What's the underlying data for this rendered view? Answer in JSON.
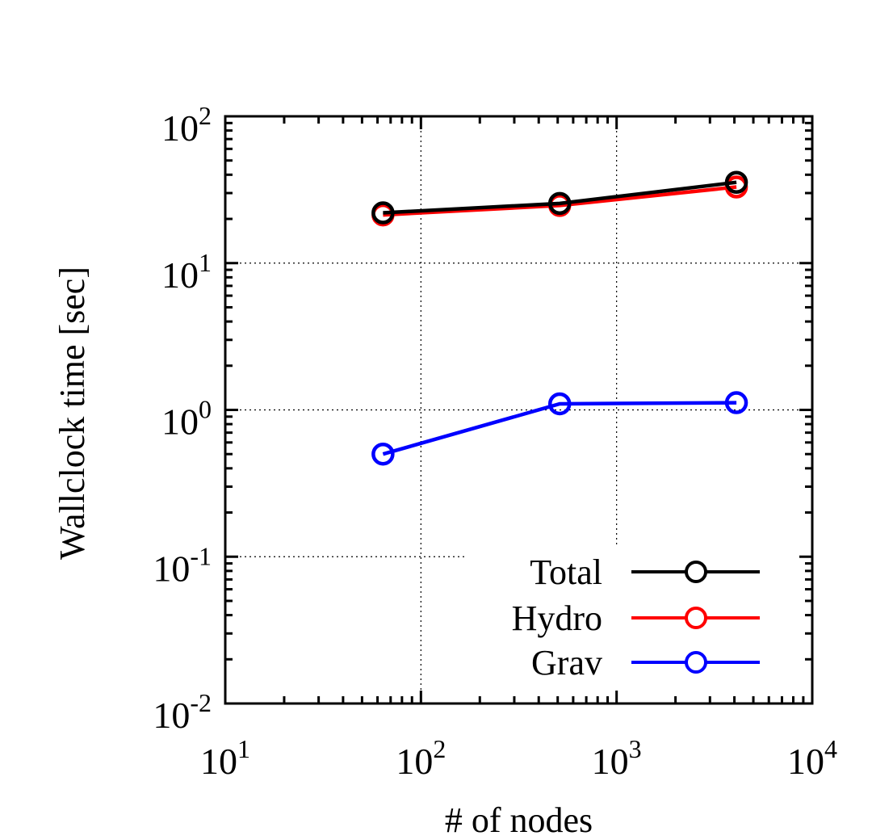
{
  "chart_data": {
    "type": "line",
    "xlabel": "# of nodes",
    "ylabel": "Wallclock time [sec]",
    "xscale": "log",
    "yscale": "log",
    "xlim": [
      10,
      10000
    ],
    "ylim": [
      0.01,
      100
    ],
    "x_ticks": [
      {
        "value": 10,
        "base": "10",
        "exp": "1"
      },
      {
        "value": 100,
        "base": "10",
        "exp": "2"
      },
      {
        "value": 1000,
        "base": "10",
        "exp": "3"
      },
      {
        "value": 10000,
        "base": "10",
        "exp": "4"
      }
    ],
    "y_ticks": [
      {
        "value": 0.01,
        "base": "10",
        "exp": "-2"
      },
      {
        "value": 0.1,
        "base": "10",
        "exp": "-1"
      },
      {
        "value": 1,
        "base": "10",
        "exp": "0"
      },
      {
        "value": 10,
        "base": "10",
        "exp": "1"
      },
      {
        "value": 100,
        "base": "10",
        "exp": "2"
      }
    ],
    "grid": true,
    "legend_position": "bottom-right",
    "series": [
      {
        "name": "Total",
        "color": "#000000",
        "marker": "open-circle",
        "x": [
          64,
          512,
          4096
        ],
        "y": [
          22.0,
          25.5,
          35.5
        ]
      },
      {
        "name": "Hydro",
        "color": "#ff0000",
        "marker": "open-circle",
        "x": [
          64,
          512,
          4096
        ],
        "y": [
          21.3,
          24.7,
          33.0
        ]
      },
      {
        "name": "Grav",
        "color": "#0000ff",
        "marker": "open-circle",
        "x": [
          64,
          512,
          4096
        ],
        "y": [
          0.5,
          1.1,
          1.12
        ]
      }
    ]
  }
}
